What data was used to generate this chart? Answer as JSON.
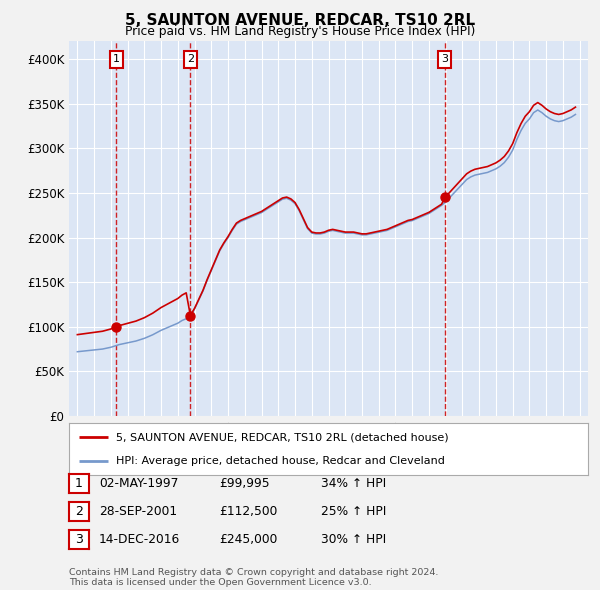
{
  "title": "5, SAUNTON AVENUE, REDCAR, TS10 2RL",
  "subtitle": "Price paid vs. HM Land Registry's House Price Index (HPI)",
  "ylim": [
    0,
    420000
  ],
  "yticks": [
    0,
    50000,
    100000,
    150000,
    200000,
    250000,
    300000,
    350000,
    400000
  ],
  "ytick_labels": [
    "£0",
    "£50K",
    "£100K",
    "£150K",
    "£200K",
    "£250K",
    "£300K",
    "£350K",
    "£400K"
  ],
  "xlim_start": 1994.5,
  "xlim_end": 2025.5,
  "plot_bg_color": "#dce6f5",
  "grid_color": "#ffffff",
  "sale_dates": [
    1997.33,
    2001.74,
    2016.95
  ],
  "sale_prices": [
    99995,
    112500,
    245000
  ],
  "sale_labels": [
    "1",
    "2",
    "3"
  ],
  "legend_line1": "5, SAUNTON AVENUE, REDCAR, TS10 2RL (detached house)",
  "legend_line2": "HPI: Average price, detached house, Redcar and Cleveland",
  "table_rows": [
    [
      "1",
      "02-MAY-1997",
      "£99,995",
      "34% ↑ HPI"
    ],
    [
      "2",
      "28-SEP-2001",
      "£112,500",
      "25% ↑ HPI"
    ],
    [
      "3",
      "14-DEC-2016",
      "£245,000",
      "30% ↑ HPI"
    ]
  ],
  "footer": "Contains HM Land Registry data © Crown copyright and database right 2024.\nThis data is licensed under the Open Government Licence v3.0.",
  "line_color_red": "#cc0000",
  "line_color_blue": "#7799cc",
  "dot_color": "#cc0000",
  "vline_color": "#cc0000",
  "years_hpi": [
    1995.0,
    1995.25,
    1995.5,
    1995.75,
    1996.0,
    1996.25,
    1996.5,
    1996.75,
    1997.0,
    1997.25,
    1997.5,
    1997.75,
    1998.0,
    1998.25,
    1998.5,
    1998.75,
    1999.0,
    1999.25,
    1999.5,
    1999.75,
    2000.0,
    2000.25,
    2000.5,
    2000.75,
    2001.0,
    2001.25,
    2001.5,
    2001.75,
    2002.0,
    2002.25,
    2002.5,
    2002.75,
    2003.0,
    2003.25,
    2003.5,
    2003.75,
    2004.0,
    2004.25,
    2004.5,
    2004.75,
    2005.0,
    2005.25,
    2005.5,
    2005.75,
    2006.0,
    2006.25,
    2006.5,
    2006.75,
    2007.0,
    2007.25,
    2007.5,
    2007.75,
    2008.0,
    2008.25,
    2008.5,
    2008.75,
    2009.0,
    2009.25,
    2009.5,
    2009.75,
    2010.0,
    2010.25,
    2010.5,
    2010.75,
    2011.0,
    2011.25,
    2011.5,
    2011.75,
    2012.0,
    2012.25,
    2012.5,
    2012.75,
    2013.0,
    2013.25,
    2013.5,
    2013.75,
    2014.0,
    2014.25,
    2014.5,
    2014.75,
    2015.0,
    2015.25,
    2015.5,
    2015.75,
    2016.0,
    2016.25,
    2016.5,
    2016.75,
    2017.0,
    2017.25,
    2017.5,
    2017.75,
    2018.0,
    2018.25,
    2018.5,
    2018.75,
    2019.0,
    2019.25,
    2019.5,
    2019.75,
    2020.0,
    2020.25,
    2020.5,
    2020.75,
    2021.0,
    2021.25,
    2021.5,
    2021.75,
    2022.0,
    2022.25,
    2022.5,
    2022.75,
    2023.0,
    2023.25,
    2023.5,
    2023.75,
    2024.0,
    2024.25,
    2024.5,
    2024.75
  ],
  "hpi_values": [
    72000,
    72500,
    73000,
    73500,
    74000,
    74500,
    75000,
    76000,
    77000,
    78500,
    80000,
    81000,
    82000,
    83000,
    84000,
    85500,
    87000,
    89000,
    91000,
    93500,
    96000,
    98000,
    100000,
    102000,
    104000,
    107000,
    109000,
    112000,
    120000,
    130000,
    140000,
    152000,
    163000,
    174000,
    185000,
    193000,
    200000,
    208000,
    215000,
    218000,
    220000,
    222000,
    224000,
    226000,
    228000,
    231000,
    234000,
    237000,
    240000,
    243000,
    244000,
    242000,
    238000,
    230000,
    220000,
    210000,
    205000,
    204000,
    204000,
    205000,
    207000,
    208000,
    207000,
    206000,
    205000,
    205000,
    205000,
    204000,
    203000,
    203000,
    204000,
    205000,
    206000,
    207000,
    208000,
    210000,
    212000,
    214000,
    216000,
    218000,
    219000,
    221000,
    223000,
    225000,
    227000,
    230000,
    233000,
    236000,
    240000,
    245000,
    250000,
    255000,
    260000,
    265000,
    268000,
    270000,
    271000,
    272000,
    273000,
    275000,
    277000,
    280000,
    284000,
    290000,
    298000,
    310000,
    320000,
    328000,
    333000,
    340000,
    343000,
    340000,
    336000,
    333000,
    331000,
    330000,
    331000,
    333000,
    335000,
    338000
  ]
}
